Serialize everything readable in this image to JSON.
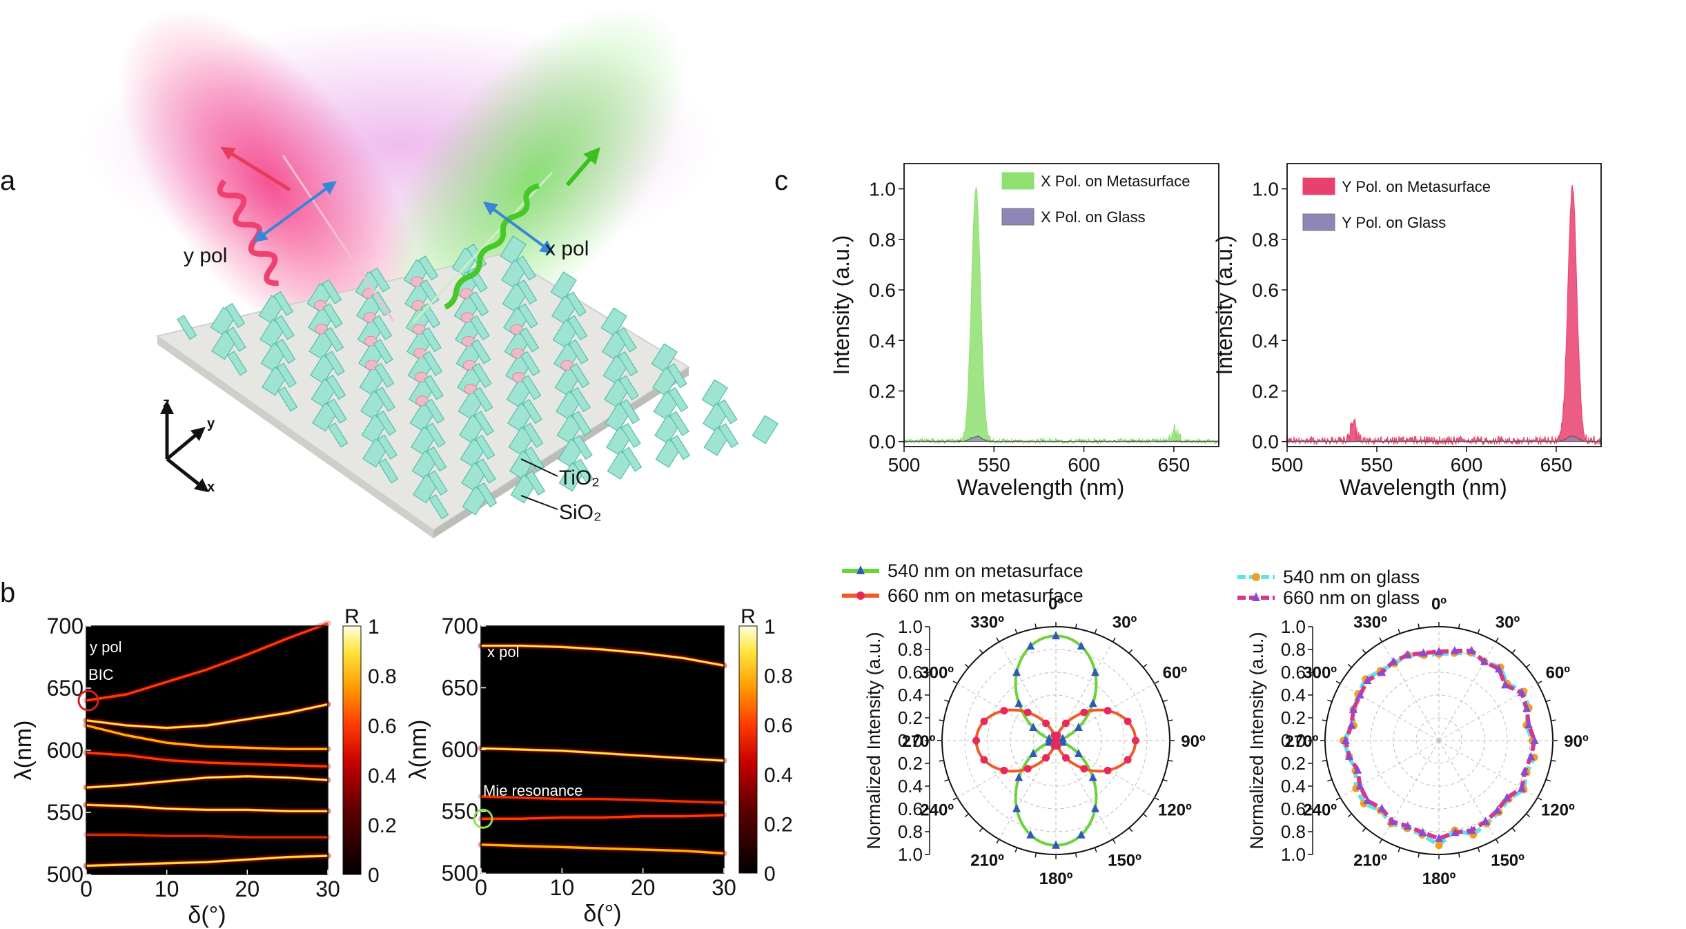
{
  "panel_labels": {
    "a": "a",
    "b": "b",
    "c": "c"
  },
  "schematic": {
    "y_pol": "y pol",
    "x_pol": "x pol",
    "axes": {
      "z": "z",
      "y": "y",
      "x": "x"
    },
    "tio2": "TiO₂",
    "sio2": "SiO₂",
    "colors": {
      "pillar": "#9fe3d3",
      "pillar_dark": "#55bfa8",
      "particle": "#f2b8c6",
      "y_beam": "#f0306a",
      "x_beam": "#5fd23c",
      "pol_arrow": "#3a86d6"
    }
  },
  "chart_data": [
    {
      "id": "b-left",
      "type": "heatmap",
      "title": "",
      "xlabel": "δ(°)",
      "ylabel": "λ(nm)",
      "xlim": [
        0,
        30
      ],
      "ylim": [
        500,
        700
      ],
      "xticks": [
        "0",
        "10",
        "20",
        "30"
      ],
      "yticks": [
        "500",
        "550",
        "600",
        "650",
        "700"
      ],
      "colorbar": {
        "label": "R",
        "ticks": [
          "0",
          "0.2",
          "0.4",
          "0.6",
          "0.8",
          "1"
        ]
      },
      "annotations": [
        "y pol",
        "BIC"
      ],
      "bands": [
        {
          "x": [
            0,
            5,
            10,
            15,
            20,
            25,
            30
          ],
          "y": [
            640,
            645,
            655,
            665,
            677,
            690,
            702
          ],
          "intensity": 0.6
        },
        {
          "x": [
            0,
            5,
            10,
            15,
            20,
            25,
            30
          ],
          "y": [
            624,
            620,
            618,
            620,
            625,
            630,
            637
          ],
          "intensity": 1
        },
        {
          "x": [
            0,
            5,
            10,
            15,
            20,
            25,
            30
          ],
          "y": [
            620,
            612,
            606,
            603,
            602,
            601,
            601
          ],
          "intensity": 0.8
        },
        {
          "x": [
            0,
            5,
            10,
            15,
            20,
            25,
            30
          ],
          "y": [
            598,
            596,
            592,
            590,
            589,
            588,
            587
          ],
          "intensity": 0.7
        },
        {
          "x": [
            0,
            5,
            10,
            15,
            20,
            25,
            30
          ],
          "y": [
            570,
            572,
            575,
            578,
            579,
            578,
            576
          ],
          "intensity": 0.9
        },
        {
          "x": [
            0,
            5,
            10,
            15,
            20,
            25,
            30
          ],
          "y": [
            556,
            555,
            553,
            552,
            552,
            551,
            551
          ],
          "intensity": 1
        },
        {
          "x": [
            0,
            5,
            10,
            15,
            20,
            25,
            30
          ],
          "y": [
            532,
            532,
            531,
            531,
            530,
            530,
            530
          ],
          "intensity": 0.4
        },
        {
          "x": [
            0,
            5,
            10,
            15,
            20,
            25,
            30
          ],
          "y": [
            507,
            508,
            509,
            510,
            512,
            514,
            515
          ],
          "intensity": 1
        }
      ]
    },
    {
      "id": "b-right",
      "type": "heatmap",
      "title": "",
      "xlabel": "δ(°)",
      "ylabel": "λ(nm)",
      "xlim": [
        0,
        30
      ],
      "ylim": [
        500,
        700
      ],
      "xticks": [
        "0",
        "10",
        "20",
        "30"
      ],
      "yticks": [
        "500",
        "550",
        "600",
        "650",
        "700"
      ],
      "colorbar": {
        "label": "R",
        "ticks": [
          "0",
          "0.2",
          "0.4",
          "0.6",
          "0.8",
          "1"
        ]
      },
      "annotations": [
        "x pol",
        "Mie resonance"
      ],
      "bands": [
        {
          "x": [
            0,
            5,
            10,
            15,
            20,
            25,
            30
          ],
          "y": [
            684,
            684,
            683,
            681,
            678,
            674,
            668
          ],
          "intensity": 1
        },
        {
          "x": [
            0,
            5,
            10,
            15,
            20,
            25,
            30
          ],
          "y": [
            601,
            600,
            599,
            597,
            595,
            593,
            591
          ],
          "intensity": 0.9
        },
        {
          "x": [
            0,
            5,
            10,
            15,
            20,
            25,
            30
          ],
          "y": [
            562,
            561,
            560,
            560,
            559,
            558,
            557
          ],
          "intensity": 0.5
        },
        {
          "x": [
            0,
            5,
            10,
            15,
            20,
            25,
            30
          ],
          "y": [
            544,
            544,
            545,
            545,
            546,
            546,
            547
          ],
          "intensity": 0.6
        },
        {
          "x": [
            0,
            5,
            10,
            15,
            20,
            25,
            30
          ],
          "y": [
            523,
            522,
            521,
            520,
            519,
            518,
            516
          ],
          "intensity": 0.8
        }
      ]
    },
    {
      "id": "c-top-left",
      "type": "area",
      "xlabel": "Wavelength (nm)",
      "ylabel": "Intensity (a.u.)",
      "xlim": [
        500,
        675
      ],
      "ylim": [
        -0.02,
        1.1
      ],
      "xticks": [
        "500",
        "550",
        "600",
        "650"
      ],
      "yticks": [
        "0.0",
        "0.2",
        "0.4",
        "0.6",
        "0.8",
        "1.0"
      ],
      "legend": "top-right",
      "series": [
        {
          "name": "X Pol. on  Metasurface",
          "color": "#8fe070",
          "peak_center": 540,
          "peak_width": 2.5,
          "peak": 1.0,
          "noise": 0.02,
          "side_bump": {
            "center": 651,
            "height": 0.07
          }
        },
        {
          "name": "X Pol. on Glass",
          "color": "#8f86b8",
          "peak_center": 540,
          "peak_width": 3,
          "peak": 0.02,
          "noise": 0.005
        }
      ]
    },
    {
      "id": "c-top-right",
      "type": "area",
      "xlabel": "Wavelength (nm)",
      "ylabel": "Intensity (a.u.)",
      "xlim": [
        500,
        675
      ],
      "ylim": [
        -0.02,
        1.1
      ],
      "xticks": [
        "500",
        "550",
        "600",
        "650"
      ],
      "yticks": [
        "0.0",
        "0.2",
        "0.4",
        "0.6",
        "0.8",
        "1.0"
      ],
      "legend": "top-left",
      "series": [
        {
          "name": "Y Pol. on  Metasurface",
          "color": "#e8416e",
          "peak_center": 659,
          "peak_width": 2.5,
          "peak": 1.0,
          "noise": 0.035,
          "side_bump": {
            "center": 537,
            "height": 0.09
          }
        },
        {
          "name": "Y Pol. on  Glass",
          "color": "#8f86b8",
          "peak_center": 659,
          "peak_width": 3,
          "peak": 0.02,
          "noise": 0.005
        }
      ]
    },
    {
      "id": "c-bottom-left",
      "type": "polar",
      "ylabel": "Normalized Intensity (a.u.)",
      "rticks": [
        "1.0",
        "0.8",
        "0.6",
        "0.4",
        "0.2",
        "0.0",
        "0.2",
        "0.4",
        "0.6",
        "0.8",
        "1.0"
      ],
      "angle_labels": [
        "0º",
        "30º",
        "60º",
        "90º",
        "120º",
        "150º",
        "180º",
        "210º",
        "240º",
        "270º",
        "300º",
        "330º"
      ],
      "series": [
        {
          "name": "540 nm on metasurface",
          "color": "#6cd13a",
          "marker": "triangle",
          "marker_color": "#2f5ab8",
          "model": "cos2"
        },
        {
          "name": "660 nm on metasurface",
          "color": "#f05a28",
          "marker": "circle",
          "marker_color": "#e8285a",
          "model": "sin2"
        }
      ]
    },
    {
      "id": "c-bottom-right",
      "type": "polar",
      "ylabel": "Normalized Intensity (a.u.)",
      "rticks": [
        "1.0",
        "0.8",
        "0.6",
        "0.4",
        "0.2",
        "0.0",
        "0.2",
        "0.4",
        "0.6",
        "0.8",
        "1.0"
      ],
      "angle_labels": [
        "0º",
        "30º",
        "60º",
        "90º",
        "120º",
        "150º",
        "180º",
        "210º",
        "240º",
        "270º",
        "300º",
        "330º"
      ],
      "series": [
        {
          "name": "540 nm on glass",
          "color": "#5fe3e8",
          "marker": "circle",
          "marker_color": "#f0a020",
          "dashed": true,
          "r": [
            0.76,
            0.78,
            0.82,
            0.8,
            0.84,
            0.78,
            0.86,
            0.84,
            0.78,
            0.82,
            0.85,
            0.82,
            0.86,
            0.8,
            0.82,
            0.84,
            0.88,
            0.8,
            0.92,
            0.84,
            0.82,
            0.84,
            0.8,
            0.86,
            0.84,
            0.78,
            0.8,
            0.84,
            0.76,
            0.8,
            0.82,
            0.84,
            0.8,
            0.78,
            0.8,
            0.76
          ]
        },
        {
          "name": "660 nm on glass",
          "color": "#d8368a",
          "marker": "triangle",
          "marker_color": "#8a4ad8",
          "dashed": true,
          "r": [
            0.78,
            0.8,
            0.84,
            0.8,
            0.82,
            0.76,
            0.84,
            0.82,
            0.8,
            0.84,
            0.82,
            0.8,
            0.84,
            0.78,
            0.8,
            0.82,
            0.84,
            0.82,
            0.86,
            0.82,
            0.8,
            0.82,
            0.78,
            0.82,
            0.8,
            0.76,
            0.8,
            0.82,
            0.78,
            0.8,
            0.8,
            0.82,
            0.78,
            0.8,
            0.8,
            0.78
          ]
        }
      ]
    }
  ]
}
